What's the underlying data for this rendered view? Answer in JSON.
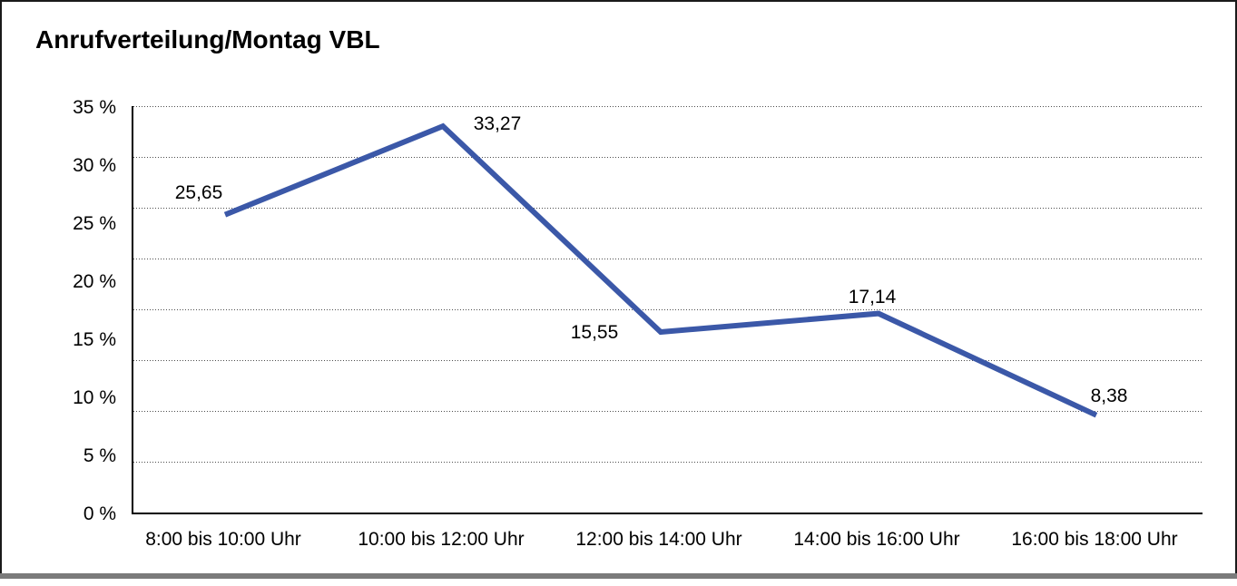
{
  "window": {
    "background": "#ffffff",
    "border_color": "#1a1a1a",
    "bottom_edge_color": "#7b7b7b"
  },
  "chart_data": {
    "type": "line",
    "title": "Anrufverteilung/Montag VBL",
    "categories": [
      "8:00 bis 10:00 Uhr",
      "10:00 bis 12:00 Uhr",
      "12:00 bis 14:00 Uhr",
      "14:00 bis 16:00 Uhr",
      "16:00 bis 18:00 Uhr"
    ],
    "values": [
      25.65,
      33.27,
      15.55,
      17.14,
      8.38
    ],
    "value_labels": [
      "25,65",
      "33,27",
      "15,55",
      "17,14",
      "8,38"
    ],
    "y_tick_labels": [
      "35 %",
      "30 %",
      "25 %",
      "20 %",
      "15 %",
      "10 %",
      "5 %",
      "0 %"
    ],
    "ylim": [
      0,
      35
    ],
    "xlabel": "",
    "ylabel": "",
    "legend": "none",
    "grid": "horizontal dotted lines, 8 equal bands",
    "line_color": "#3b58a8",
    "text_color": "#000000"
  }
}
